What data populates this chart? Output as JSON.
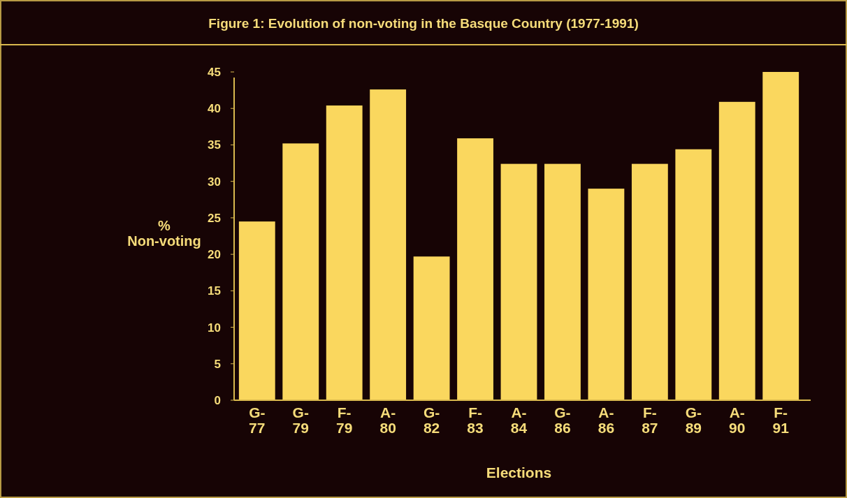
{
  "chart_data": {
    "type": "bar",
    "title": "Figure 1: Evolution of non-voting in the Basque Country (1977-1991)",
    "xlabel": "Elections",
    "ylabel": "% Non-voting",
    "categories": [
      "G-77",
      "G-79",
      "F-79",
      "A-80",
      "G-82",
      "F-83",
      "A-84",
      "G-86",
      "A-86",
      "F-87",
      "G-89",
      "A-90",
      "F-91"
    ],
    "values": [
      24.5,
      35.2,
      40.4,
      42.6,
      19.7,
      35.9,
      32.4,
      32.4,
      29.0,
      32.4,
      34.4,
      40.9,
      45
    ],
    "color": "#fad75e",
    "ylim": [
      0,
      45
    ],
    "yticks": [
      0,
      5,
      10,
      15,
      20,
      25,
      30,
      35,
      40,
      45
    ],
    "grid": false
  }
}
